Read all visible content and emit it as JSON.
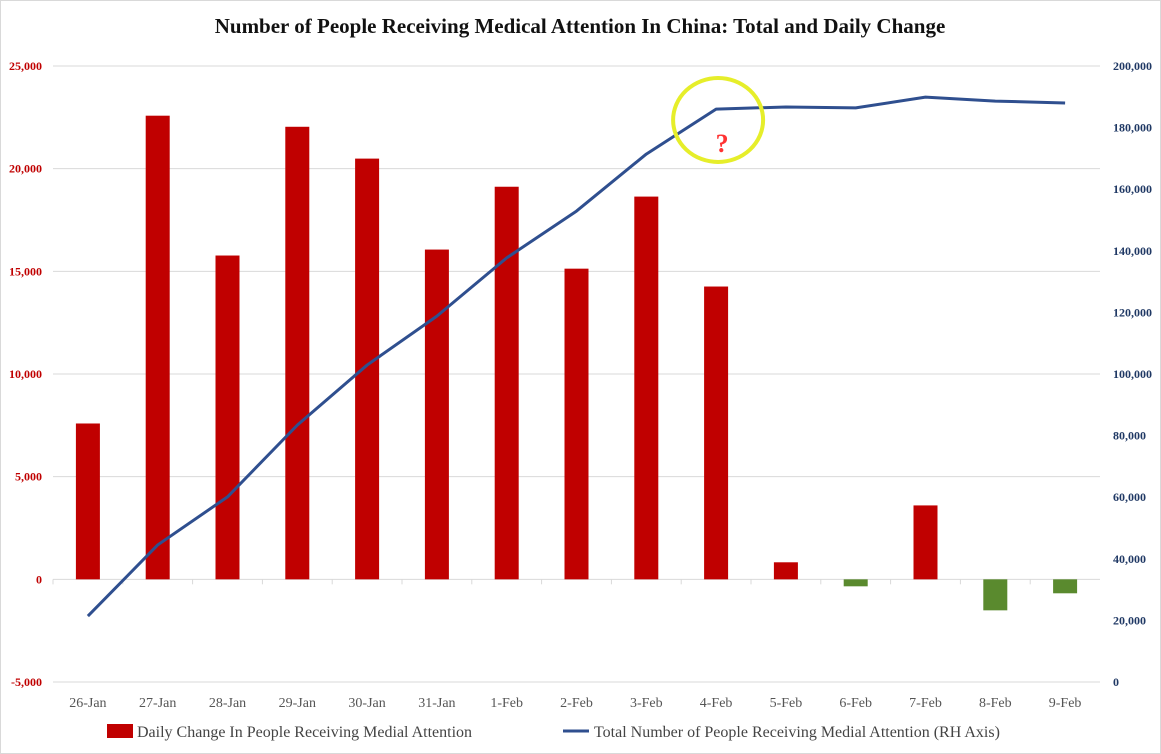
{
  "chart_data": {
    "type": "bar+line",
    "title": "Number of People Receiving Medical Attention In China: Total and Daily Change",
    "categories": [
      "26-Jan",
      "27-Jan",
      "28-Jan",
      "29-Jan",
      "30-Jan",
      "31-Jan",
      "1-Feb",
      "2-Feb",
      "3-Feb",
      "4-Feb",
      "5-Feb",
      "6-Feb",
      "7-Feb",
      "8-Feb",
      "9-Feb"
    ],
    "series": [
      {
        "name": "Daily Change In People Receiving Medial Attention",
        "type": "bar",
        "axis": "left",
        "values": [
          7590,
          22580,
          15770,
          22040,
          20490,
          16060,
          19120,
          15130,
          18640,
          14260,
          830,
          -340,
          3600,
          -1510,
          -680
        ]
      },
      {
        "name": "Total Number of People Receiving Medial Attention (RH Axis)",
        "type": "line",
        "axis": "right",
        "values": [
          21400,
          44500,
          60100,
          83400,
          102900,
          118800,
          137700,
          152900,
          171400,
          186000,
          186700,
          186400,
          189900,
          188600,
          188000
        ]
      }
    ],
    "left_axis": {
      "range": [
        -5000,
        25000
      ],
      "ticks": [
        "-5,000",
        "0",
        "5,000",
        "10,000",
        "15,000",
        "20,000",
        "25,000"
      ]
    },
    "right_axis": {
      "range": [
        0,
        200000
      ],
      "ticks": [
        "0",
        "20,000",
        "40,000",
        "60,000",
        "80,000",
        "100,000",
        "120,000",
        "140,000",
        "160,000",
        "180,000",
        "200,000"
      ]
    },
    "grid": true,
    "legend": "bottom",
    "annotation": {
      "text": "?",
      "target": "4-Feb",
      "color": "#ff3333",
      "circle_color": "#e6ee2a"
    },
    "colors": {
      "bar_positive": "#c00000",
      "bar_negative": "#5a8a2e",
      "line": "#2f4f8f",
      "left_axis": "#c00000",
      "right_axis": "#1f3864"
    }
  }
}
